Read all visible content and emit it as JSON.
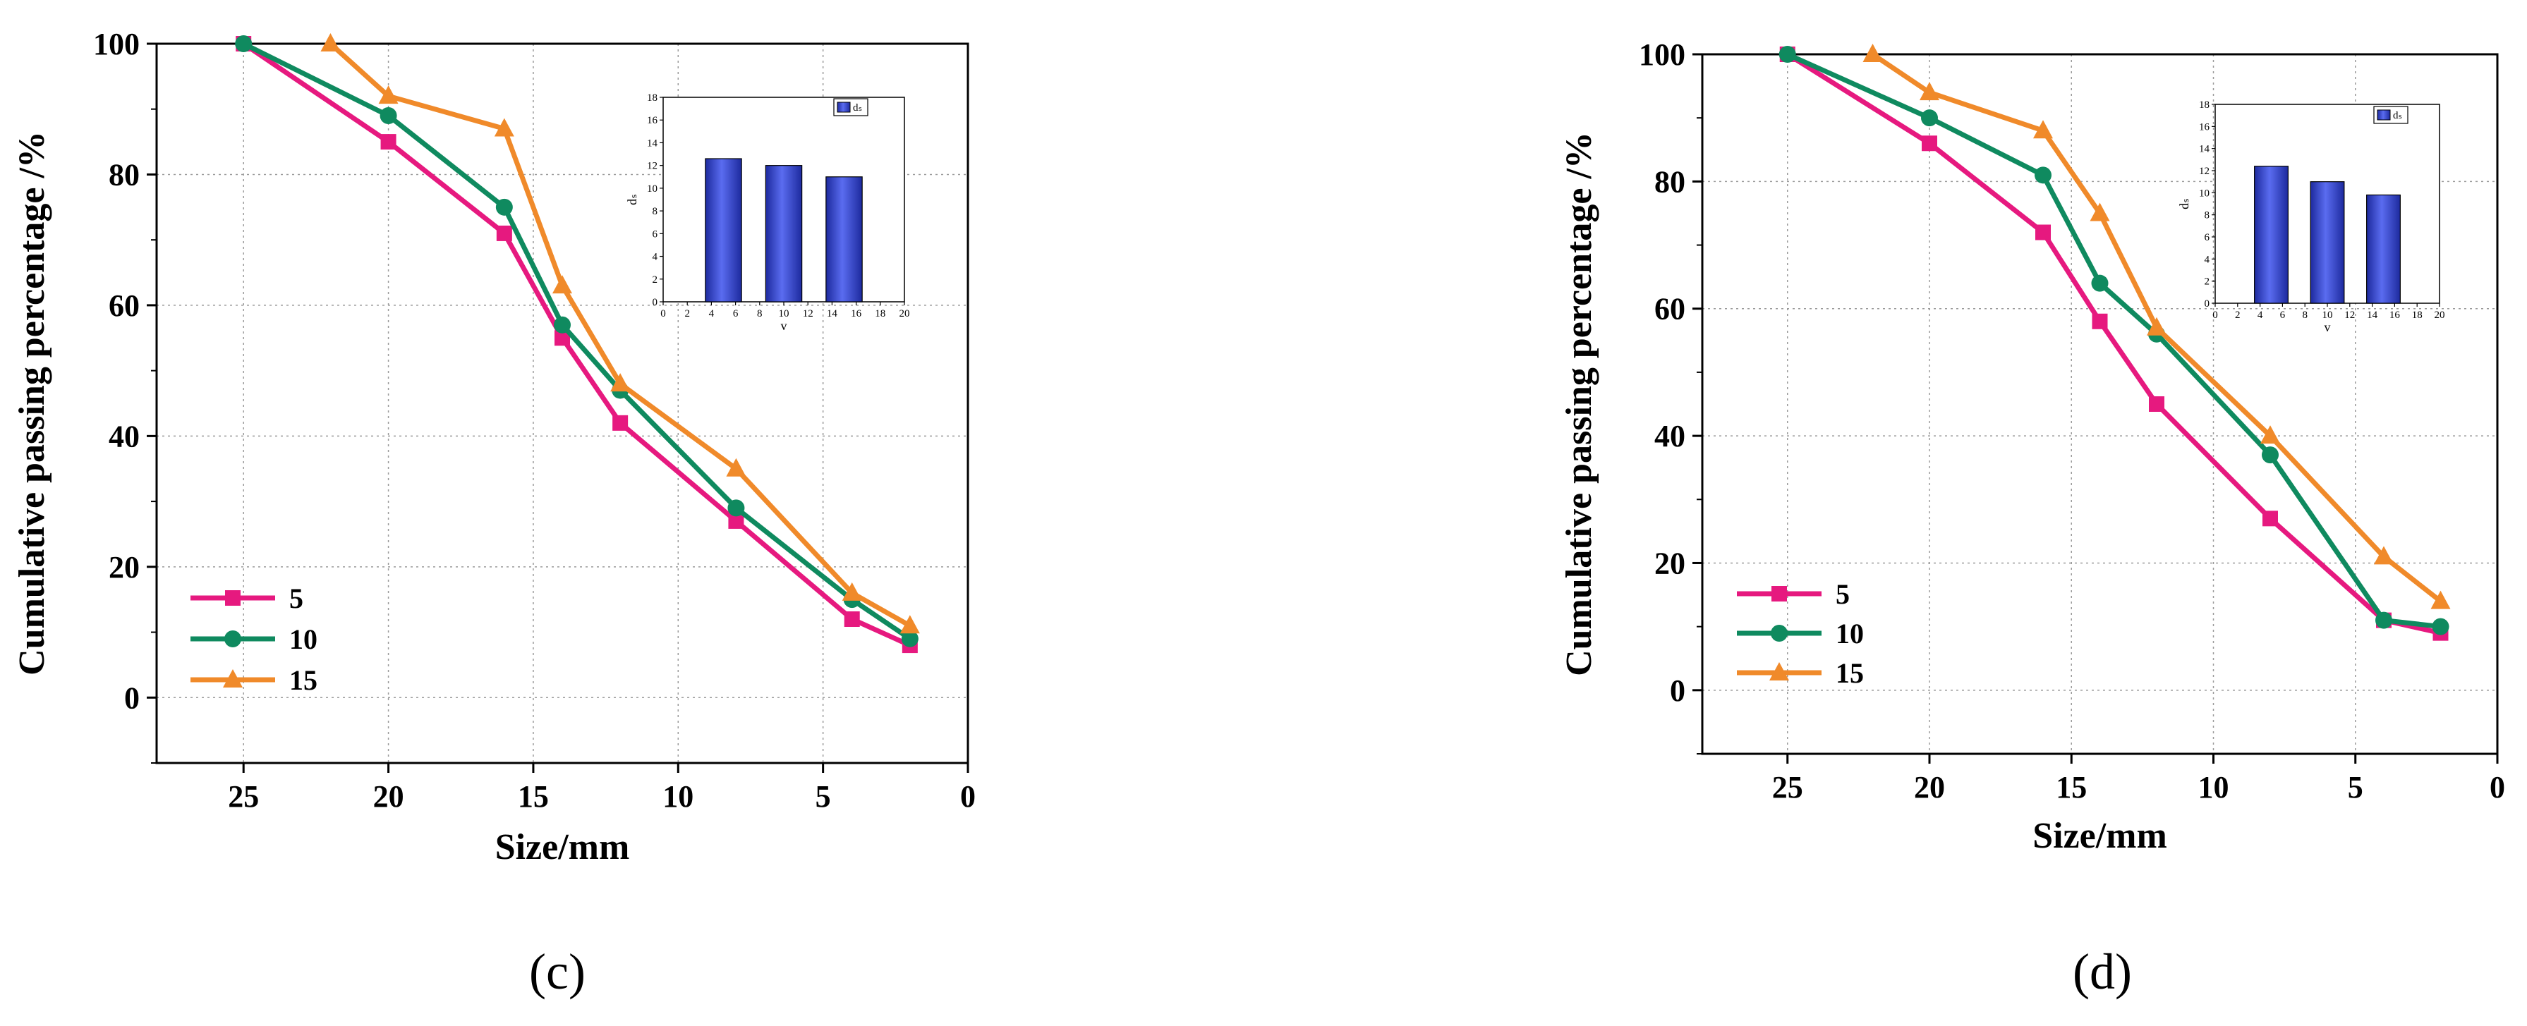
{
  "chart_data": [
    {
      "type": "line",
      "panel_label": "(c)",
      "xlabel": "Size/mm",
      "ylabel": "Cumulative passing percentage /%",
      "xlim": [
        28,
        0
      ],
      "ylim": [
        -10,
        100
      ],
      "xticks": [
        25,
        20,
        15,
        10,
        5,
        0
      ],
      "yticks": [
        0,
        20,
        40,
        60,
        80,
        100
      ],
      "grid": true,
      "legend_position": "bottom-left",
      "series": [
        {
          "name": "5",
          "color": "#e6197f",
          "marker": "square",
          "x": [
            25,
            20,
            16,
            14,
            12,
            8,
            4,
            2
          ],
          "y": [
            100,
            85,
            71,
            55,
            42,
            27,
            12,
            8
          ]
        },
        {
          "name": "10",
          "color": "#0f8a5f",
          "marker": "circle",
          "x": [
            25,
            20,
            16,
            14,
            12,
            8,
            4,
            2
          ],
          "y": [
            100,
            89,
            75,
            57,
            47,
            29,
            15,
            9
          ]
        },
        {
          "name": "15",
          "color": "#f08a2a",
          "marker": "triangle",
          "x": [
            22,
            20,
            16,
            14,
            12,
            8,
            4,
            2
          ],
          "y": [
            100,
            92,
            87,
            63,
            48,
            35,
            16,
            11
          ]
        }
      ],
      "inset": {
        "type": "bar",
        "xlabel": "v",
        "ylabel": "dₛ",
        "legend": "dₛ",
        "color": "#3b4fd8",
        "xlim": [
          0,
          20
        ],
        "ylim": [
          0,
          18
        ],
        "xticks": [
          0,
          2,
          4,
          6,
          8,
          10,
          12,
          14,
          16,
          18,
          20
        ],
        "yticks": [
          0,
          2,
          4,
          6,
          8,
          10,
          12,
          14,
          16,
          18
        ],
        "x": [
          5,
          10,
          15
        ],
        "values": [
          12.6,
          12.0,
          11.0
        ]
      }
    },
    {
      "type": "line",
      "panel_label": "(d)",
      "xlabel": "Size/mm",
      "ylabel": "Cumulative passing percentage /%",
      "xlim": [
        28,
        0
      ],
      "ylim": [
        -10,
        100
      ],
      "xticks": [
        25,
        20,
        15,
        10,
        5,
        0
      ],
      "yticks": [
        0,
        20,
        40,
        60,
        80,
        100
      ],
      "grid": true,
      "legend_position": "bottom-left",
      "series": [
        {
          "name": "5",
          "color": "#e6197f",
          "marker": "square",
          "x": [
            25,
            20,
            16,
            14,
            12,
            8,
            4,
            2
          ],
          "y": [
            100,
            86,
            72,
            58,
            45,
            27,
            11,
            9
          ]
        },
        {
          "name": "10",
          "color": "#0f8a5f",
          "marker": "circle",
          "x": [
            25,
            20,
            16,
            14,
            12,
            8,
            4,
            2
          ],
          "y": [
            100,
            90,
            81,
            64,
            56,
            37,
            11,
            10
          ]
        },
        {
          "name": "15",
          "color": "#f08a2a",
          "marker": "triangle",
          "x": [
            22,
            20,
            16,
            14,
            12,
            8,
            4,
            2
          ],
          "y": [
            100,
            94,
            88,
            75,
            57,
            40,
            21,
            14
          ]
        }
      ],
      "inset": {
        "type": "bar",
        "xlabel": "v",
        "ylabel": "dₛ",
        "legend": "dₛ",
        "color": "#3b4fd8",
        "xlim": [
          0,
          20
        ],
        "ylim": [
          0,
          18
        ],
        "xticks": [
          0,
          2,
          4,
          6,
          8,
          10,
          12,
          14,
          16,
          18,
          20
        ],
        "yticks": [
          0,
          2,
          4,
          6,
          8,
          10,
          12,
          14,
          16,
          18
        ],
        "x": [
          5,
          10,
          15
        ],
        "values": [
          12.4,
          11.0,
          9.8
        ]
      }
    }
  ]
}
